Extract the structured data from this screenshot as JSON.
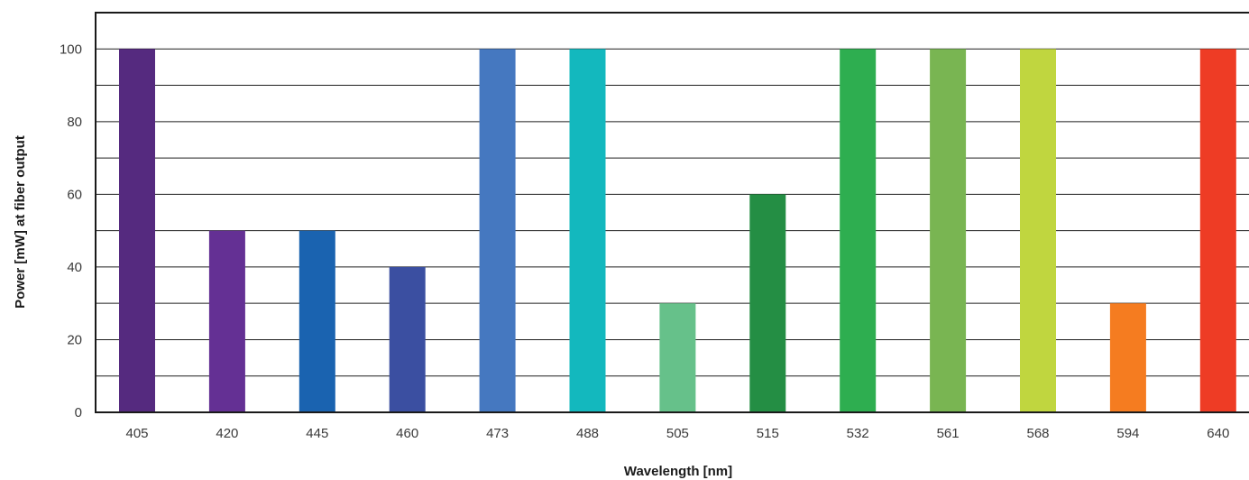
{
  "chart_data": {
    "type": "bar",
    "categories": [
      "405",
      "420",
      "445",
      "460",
      "473",
      "488",
      "505",
      "515",
      "532",
      "561",
      "568",
      "594",
      "640"
    ],
    "values": [
      100,
      50,
      50,
      40,
      100,
      100,
      30,
      60,
      100,
      100,
      100,
      30,
      100
    ],
    "colors": [
      "#552a7f",
      "#643094",
      "#1a63b0",
      "#3b4fa1",
      "#4578c0",
      "#13b8be",
      "#66c18a",
      "#248e44",
      "#2eae50",
      "#79b552",
      "#c0d63f",
      "#f57c20",
      "#ee3c25"
    ],
    "xlabel": "Wavelength [nm]",
    "ylabel": "Power [mW] at fiber output",
    "ylim": [
      0,
      110
    ],
    "yticks": [
      0,
      20,
      40,
      60,
      80,
      100
    ],
    "gridlines": [
      10,
      20,
      30,
      40,
      50,
      60,
      70,
      80,
      90,
      100
    ],
    "grid": true
  }
}
